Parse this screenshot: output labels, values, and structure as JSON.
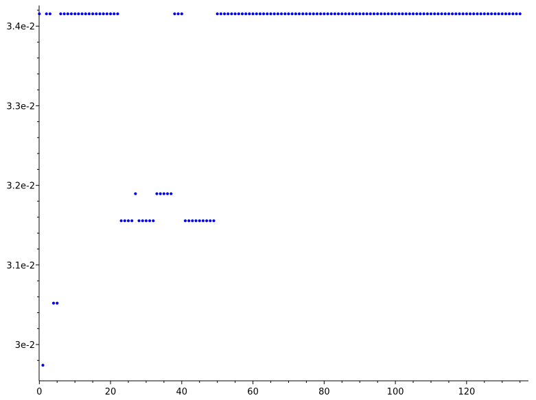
{
  "chart_data": {
    "type": "scatter",
    "title": "",
    "xlabel": "",
    "ylabel": "",
    "xlim": [
      -0.5,
      137
    ],
    "ylim": [
      0.02966,
      0.03425
    ],
    "grid": false,
    "marker_color": "#0000ff",
    "x_ticks": [
      0,
      20,
      40,
      60,
      80,
      100,
      120
    ],
    "x_tick_labels": [
      "0",
      "20",
      "40",
      "60",
      "80",
      "100",
      "120"
    ],
    "y_ticks": [
      0.03,
      0.031,
      0.032,
      0.033,
      0.034
    ],
    "y_tick_labels": [
      "3e-2",
      "3.1e-2",
      "3.2e-2",
      "3.3e-2",
      "3.4e-2"
    ],
    "series": [
      {
        "points": [
          [
            0,
            0.034155
          ],
          [
            1,
            0.02974
          ],
          [
            2,
            0.034155
          ],
          [
            3,
            0.034155
          ],
          [
            4,
            0.03052
          ],
          [
            5,
            0.03052
          ],
          [
            6,
            0.034155
          ],
          [
            7,
            0.034155
          ],
          [
            8,
            0.034155
          ],
          [
            9,
            0.034155
          ],
          [
            10,
            0.034155
          ],
          [
            11,
            0.034155
          ],
          [
            12,
            0.034155
          ],
          [
            13,
            0.034155
          ],
          [
            14,
            0.034155
          ],
          [
            15,
            0.034155
          ],
          [
            16,
            0.034155
          ],
          [
            17,
            0.034155
          ],
          [
            18,
            0.034155
          ],
          [
            19,
            0.034155
          ],
          [
            20,
            0.034155
          ],
          [
            21,
            0.034155
          ],
          [
            22,
            0.034155
          ],
          [
            23,
            0.031555
          ],
          [
            24,
            0.031555
          ],
          [
            25,
            0.031555
          ],
          [
            26,
            0.031555
          ],
          [
            27,
            0.031895
          ],
          [
            28,
            0.031555
          ],
          [
            29,
            0.031555
          ],
          [
            30,
            0.031555
          ],
          [
            31,
            0.031555
          ],
          [
            32,
            0.031555
          ],
          [
            33,
            0.031895
          ],
          [
            34,
            0.031895
          ],
          [
            35,
            0.031895
          ],
          [
            36,
            0.031895
          ],
          [
            37,
            0.031895
          ],
          [
            38,
            0.034155
          ],
          [
            39,
            0.034155
          ],
          [
            40,
            0.034155
          ],
          [
            41,
            0.031555
          ],
          [
            42,
            0.031555
          ],
          [
            43,
            0.031555
          ],
          [
            44,
            0.031555
          ],
          [
            45,
            0.031555
          ],
          [
            46,
            0.031555
          ],
          [
            47,
            0.031555
          ],
          [
            48,
            0.031555
          ],
          [
            49,
            0.031555
          ],
          [
            50,
            0.034155
          ],
          [
            51,
            0.034155
          ],
          [
            52,
            0.034155
          ],
          [
            53,
            0.034155
          ],
          [
            54,
            0.034155
          ],
          [
            55,
            0.034155
          ],
          [
            56,
            0.034155
          ],
          [
            57,
            0.034155
          ],
          [
            58,
            0.034155
          ],
          [
            59,
            0.034155
          ],
          [
            60,
            0.034155
          ],
          [
            61,
            0.034155
          ],
          [
            62,
            0.034155
          ],
          [
            63,
            0.034155
          ],
          [
            64,
            0.034155
          ],
          [
            65,
            0.034155
          ],
          [
            66,
            0.034155
          ],
          [
            67,
            0.034155
          ],
          [
            68,
            0.034155
          ],
          [
            69,
            0.034155
          ],
          [
            70,
            0.034155
          ],
          [
            71,
            0.034155
          ],
          [
            72,
            0.034155
          ],
          [
            73,
            0.034155
          ],
          [
            74,
            0.034155
          ],
          [
            75,
            0.034155
          ],
          [
            76,
            0.034155
          ],
          [
            77,
            0.034155
          ],
          [
            78,
            0.034155
          ],
          [
            79,
            0.034155
          ],
          [
            80,
            0.034155
          ],
          [
            81,
            0.034155
          ],
          [
            82,
            0.034155
          ],
          [
            83,
            0.034155
          ],
          [
            84,
            0.034155
          ],
          [
            85,
            0.034155
          ],
          [
            86,
            0.034155
          ],
          [
            87,
            0.034155
          ],
          [
            88,
            0.034155
          ],
          [
            89,
            0.034155
          ],
          [
            90,
            0.034155
          ],
          [
            91,
            0.034155
          ],
          [
            92,
            0.034155
          ],
          [
            93,
            0.034155
          ],
          [
            94,
            0.034155
          ],
          [
            95,
            0.034155
          ],
          [
            96,
            0.034155
          ],
          [
            97,
            0.034155
          ],
          [
            98,
            0.034155
          ],
          [
            99,
            0.034155
          ],
          [
            100,
            0.034155
          ],
          [
            101,
            0.034155
          ],
          [
            102,
            0.034155
          ],
          [
            103,
            0.034155
          ],
          [
            104,
            0.034155
          ],
          [
            105,
            0.034155
          ],
          [
            106,
            0.034155
          ],
          [
            107,
            0.034155
          ],
          [
            108,
            0.034155
          ],
          [
            109,
            0.034155
          ],
          [
            110,
            0.034155
          ],
          [
            111,
            0.034155
          ],
          [
            112,
            0.034155
          ],
          [
            113,
            0.034155
          ],
          [
            114,
            0.034155
          ],
          [
            115,
            0.034155
          ],
          [
            116,
            0.034155
          ],
          [
            117,
            0.034155
          ],
          [
            118,
            0.034155
          ],
          [
            119,
            0.034155
          ],
          [
            120,
            0.034155
          ],
          [
            121,
            0.034155
          ],
          [
            122,
            0.034155
          ],
          [
            123,
            0.034155
          ],
          [
            124,
            0.034155
          ],
          [
            125,
            0.034155
          ],
          [
            126,
            0.034155
          ],
          [
            127,
            0.034155
          ],
          [
            128,
            0.034155
          ],
          [
            129,
            0.034155
          ],
          [
            130,
            0.034155
          ],
          [
            131,
            0.034155
          ],
          [
            132,
            0.034155
          ],
          [
            133,
            0.034155
          ],
          [
            134,
            0.034155
          ],
          [
            135,
            0.034155
          ]
        ]
      }
    ]
  }
}
